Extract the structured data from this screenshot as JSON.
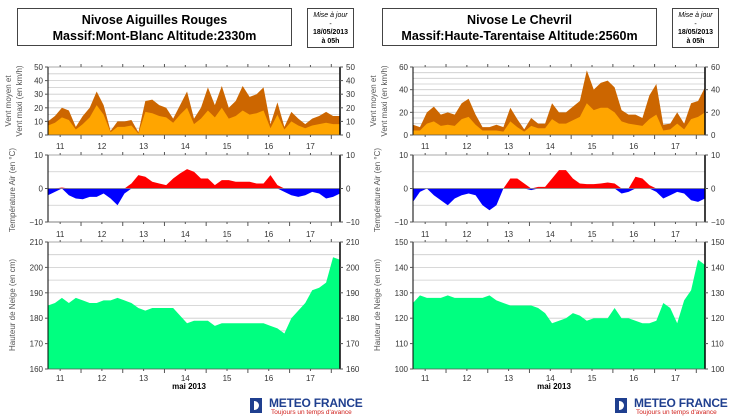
{
  "axis_labels": {
    "wind": [
      "Vent moyen et",
      "Vent maxi (en km/h)"
    ],
    "temp": "Température Air (en °C)",
    "snow": "Hauteur de Neige (en cm)"
  },
  "xaxis": {
    "month_label": "mai 2013",
    "day_labels": [
      "11",
      "12",
      "13",
      "14",
      "15",
      "16",
      "17"
    ]
  },
  "logo": {
    "name": "METEO FRANCE",
    "tagline": "Toujours un temps d'avance"
  },
  "colors": {
    "wind_max": "#cc6600",
    "wind_mean": "#ffa500",
    "temp_pos": "#ff0000",
    "temp_neg": "#0000ff",
    "snow": "#00ff80"
  },
  "stations": [
    {
      "title_line1": "Nivose Aiguilles Rouges",
      "title_line2": "Massif:Mont-Blanc Altitude:2330m",
      "update": {
        "label": "Mise à jour",
        "dash": "-",
        "date": "18/05/2013",
        "time": "à 05h"
      }
    },
    {
      "title_line1": "Nivose Le Chevril",
      "title_line2": "Massif:Haute-Tarentaise Altitude:2560m",
      "update": {
        "label": "Mise à jour",
        "dash": "-",
        "date": "18/05/2013",
        "time": "à 05h"
      }
    }
  ],
  "chart_data": {
    "x": [
      "2013-05-11 05h",
      "2013-05-11 09h",
      "2013-05-11 13h",
      "2013-05-11 17h",
      "2013-05-11 21h",
      "2013-05-12 01h",
      "2013-05-12 05h",
      "2013-05-12 09h",
      "2013-05-12 13h",
      "2013-05-12 17h",
      "2013-05-12 21h",
      "2013-05-13 01h",
      "2013-05-13 05h",
      "2013-05-13 09h",
      "2013-05-13 13h",
      "2013-05-13 17h",
      "2013-05-13 21h",
      "2013-05-14 01h",
      "2013-05-14 05h",
      "2013-05-14 09h",
      "2013-05-14 13h",
      "2013-05-14 17h",
      "2013-05-14 21h",
      "2013-05-15 01h",
      "2013-05-15 05h",
      "2013-05-15 09h",
      "2013-05-15 13h",
      "2013-05-15 17h",
      "2013-05-15 21h",
      "2013-05-16 01h",
      "2013-05-16 05h",
      "2013-05-16 09h",
      "2013-05-16 13h",
      "2013-05-16 17h",
      "2013-05-16 21h",
      "2013-05-17 01h",
      "2013-05-17 05h",
      "2013-05-17 09h",
      "2013-05-17 13h",
      "2013-05-17 17h",
      "2013-05-17 21h",
      "2013-05-18 01h",
      "2013-05-18 05h"
    ],
    "stations": [
      {
        "wind": {
          "type": "area",
          "ylim": [
            0,
            50
          ],
          "yticks": [
            0,
            10,
            20,
            30,
            40,
            50
          ],
          "series": [
            {
              "values": [
                10,
                14,
                20,
                18,
                6,
                14,
                20,
                32,
                22,
                3,
                10,
                10,
                11,
                2,
                25,
                26,
                22,
                20,
                12,
                22,
                32,
                12,
                20,
                35,
                22,
                36,
                20,
                25,
                36,
                28,
                30,
                35,
                8,
                24,
                6,
                17,
                12,
                8,
                12,
                14,
                17,
                14,
                14
              ]
            },
            {
              "values": [
                7,
                9,
                13,
                11,
                4,
                8,
                13,
                22,
                15,
                2,
                6,
                6,
                7,
                1,
                17,
                16,
                14,
                13,
                9,
                15,
                20,
                8,
                12,
                18,
                13,
                20,
                12,
                14,
                18,
                15,
                16,
                18,
                5,
                15,
                4,
                10,
                7,
                5,
                7,
                8,
                9,
                8,
                8
              ]
            }
          ]
        },
        "temp": {
          "type": "area",
          "ylim": [
            -10,
            10
          ],
          "yticks": [
            -10,
            0,
            10
          ],
          "values": [
            -2,
            -1,
            0.3,
            -2,
            -3,
            -3.2,
            -2.5,
            -2.5,
            -1.5,
            -3,
            -5,
            -1.5,
            1.5,
            4,
            3.5,
            2,
            1.5,
            1,
            3,
            4.5,
            5.8,
            5,
            3,
            3,
            1,
            2.5,
            2.5,
            2,
            2,
            2,
            1.5,
            1.5,
            4,
            1,
            -1,
            -2,
            -2.5,
            -2,
            -1,
            -1.5,
            -3,
            -2.5,
            -1.5
          ]
        },
        "snow": {
          "type": "area",
          "ylim": [
            160,
            210
          ],
          "yticks": [
            160,
            170,
            180,
            190,
            200,
            210
          ],
          "values": [
            185,
            186,
            188,
            186,
            188,
            187,
            186,
            186,
            187,
            187,
            188,
            187,
            186,
            184,
            183,
            184,
            184,
            184,
            184,
            181,
            178,
            179,
            179,
            179,
            177,
            178,
            178,
            178,
            178,
            178,
            178,
            178,
            177,
            176,
            174,
            180,
            183,
            186,
            191,
            192,
            194,
            204,
            203
          ]
        }
      },
      {
        "wind": {
          "type": "area",
          "ylim": [
            0,
            60
          ],
          "yticks": [
            0,
            20,
            40,
            60
          ],
          "series": [
            {
              "values": [
                9,
                7,
                20,
                25,
                18,
                20,
                18,
                28,
                32,
                18,
                7,
                7,
                9,
                7,
                24,
                14,
                5,
                15,
                10,
                10,
                28,
                20,
                20,
                25,
                30,
                57,
                40,
                46,
                48,
                42,
                22,
                18,
                18,
                15,
                35,
                45,
                9,
                10,
                20,
                10,
                28,
                30,
                42
              ]
            },
            {
              "values": [
                4,
                4,
                10,
                12,
                8,
                9,
                8,
                14,
                16,
                9,
                4,
                4,
                4,
                3,
                12,
                7,
                3,
                8,
                6,
                6,
                14,
                10,
                10,
                13,
                16,
                28,
                22,
                24,
                24,
                20,
                12,
                10,
                9,
                8,
                14,
                18,
                4,
                5,
                10,
                5,
                14,
                16,
                20
              ]
            }
          ]
        },
        "temp": {
          "type": "area",
          "ylim": [
            -10,
            10
          ],
          "yticks": [
            -10,
            0,
            10
          ],
          "values": [
            -4,
            -1,
            0,
            -2,
            -3.5,
            -5,
            -3,
            -2,
            -1.5,
            -2,
            -5,
            -6.5,
            -5,
            0,
            3,
            3,
            1.5,
            -0.5,
            0.5,
            0.5,
            3,
            5.5,
            5.5,
            3,
            1.5,
            1.3,
            1.3,
            1.5,
            1.8,
            1.5,
            -1.5,
            -1,
            3.5,
            3,
            1,
            -1,
            -3,
            -2,
            -1,
            -1.5,
            -3.5,
            -4,
            -3
          ]
        },
        "snow": {
          "type": "area",
          "ylim": [
            100,
            150
          ],
          "yticks": [
            100,
            110,
            120,
            130,
            140,
            150
          ],
          "values": [
            126,
            129,
            128,
            128,
            128,
            129,
            128,
            128,
            128,
            128,
            128,
            129,
            127,
            126,
            125,
            125,
            125,
            125,
            124,
            122,
            118,
            119,
            120,
            122,
            121,
            119,
            120,
            120,
            120,
            124,
            120,
            120,
            119,
            118,
            118,
            119,
            126,
            124,
            118,
            127,
            131,
            143,
            141
          ]
        }
      }
    ]
  }
}
